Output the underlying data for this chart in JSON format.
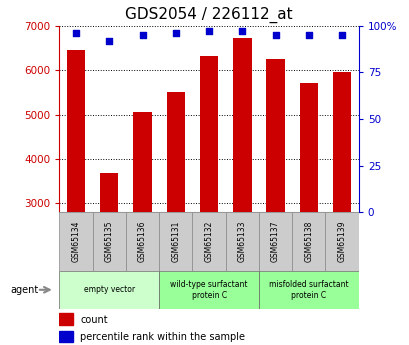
{
  "title": "GDS2054 / 226112_at",
  "samples": [
    "GSM65134",
    "GSM65135",
    "GSM65136",
    "GSM65131",
    "GSM65132",
    "GSM65133",
    "GSM65137",
    "GSM65138",
    "GSM65139"
  ],
  "counts": [
    6450,
    3680,
    5060,
    5500,
    6330,
    6720,
    6250,
    5720,
    5950
  ],
  "percentiles": [
    96,
    92,
    95,
    96,
    97,
    97,
    95,
    95,
    95
  ],
  "ylim_left": [
    2800,
    7000
  ],
  "ylim_right": [
    0,
    100
  ],
  "yticks_left": [
    3000,
    4000,
    5000,
    6000,
    7000
  ],
  "yticks_right": [
    0,
    25,
    50,
    75,
    100
  ],
  "yticklabels_right": [
    "0",
    "25",
    "50",
    "75",
    "100%"
  ],
  "bar_color": "#cc0000",
  "dot_color": "#0000cc",
  "bar_bottom": 2800,
  "groups": [
    {
      "label": "empty vector",
      "start": 0,
      "end": 3,
      "color": "#ccffcc"
    },
    {
      "label": "wild-type surfactant\nprotein C",
      "start": 3,
      "end": 6,
      "color": "#99ff99"
    },
    {
      "label": "misfolded surfactant\nprotein C",
      "start": 6,
      "end": 9,
      "color": "#99ff99"
    }
  ],
  "agent_label": "agent",
  "legend_count_label": "count",
  "legend_percentile_label": "percentile rank within the sample",
  "left_axis_color": "#cc0000",
  "right_axis_color": "#0000cc",
  "background_color": "#ffffff",
  "grid_color": "#000000",
  "sample_bg_color": "#cccccc",
  "group_colors": [
    "#ccffcc",
    "#99ff99",
    "#99ff99"
  ],
  "title_fontsize": 11
}
